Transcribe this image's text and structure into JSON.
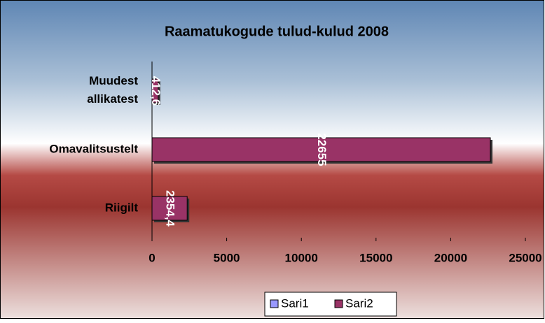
{
  "chart_data": {
    "type": "bar",
    "orientation": "horizontal",
    "title": "Raamatukogude tulud-kulud 2008",
    "categories": [
      "Muudest allikatest",
      "Omavalitsustelt",
      "Riigilt"
    ],
    "series": [
      {
        "name": "Sari1",
        "color": "#9999ff",
        "values": [
          null,
          null,
          null
        ]
      },
      {
        "name": "Sari2",
        "color": "#993366",
        "values": [
          412.6,
          22655,
          2354.4
        ],
        "value_labels": [
          "412,6",
          "22655",
          "2354,4"
        ]
      }
    ],
    "xlim": [
      0,
      25000
    ],
    "xticks": [
      0,
      5000,
      10000,
      15000,
      20000,
      25000
    ],
    "legend": "bottom"
  }
}
